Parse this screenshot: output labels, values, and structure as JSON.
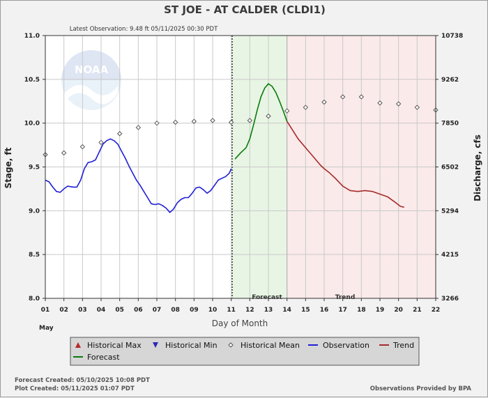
{
  "chart_data": {
    "type": "line",
    "title": "ST JOE - AT CALDER  (CLDI1)",
    "latest_observation": "Latest Observation: 9.48 ft 05/11/2025 00:30 PDT",
    "xlabel": "Day of Month",
    "month_label": "May",
    "ylabel_left": "Stage, ft",
    "ylabel_right": "Discharge, cfs",
    "x_range": [
      1,
      22
    ],
    "ylim": [
      8.0,
      11.0
    ],
    "x_ticks": [
      "01",
      "02",
      "03",
      "04",
      "05",
      "06",
      "07",
      "08",
      "09",
      "10",
      "11",
      "12",
      "13",
      "14",
      "15",
      "16",
      "17",
      "18",
      "19",
      "20",
      "21",
      "22"
    ],
    "y_ticks_left": [
      "8.0",
      "8.5",
      "9.0",
      "9.5",
      "10.0",
      "10.5",
      "11.0"
    ],
    "y_ticks_right": [
      {
        "stage": 8.0,
        "label": "3266"
      },
      {
        "stage": 8.5,
        "label": "4215"
      },
      {
        "stage": 9.0,
        "label": "5294"
      },
      {
        "stage": 9.5,
        "label": "6502"
      },
      {
        "stage": 10.0,
        "label": "7850"
      },
      {
        "stage": 10.5,
        "label": "9262"
      },
      {
        "stage": 11.0,
        "label": "10738"
      }
    ],
    "observation_divider_day": 11.05,
    "forecast_band": {
      "start_day": 11.05,
      "end_day": 14.0,
      "label": "Forecast",
      "color": "#e8f5e4"
    },
    "trend_band": {
      "start_day": 14.0,
      "end_day": 22.0,
      "label": "Trend",
      "color": "#fbeaea"
    },
    "series": [
      {
        "name": "Observation",
        "color": "#1f1fd6",
        "points": [
          [
            1.0,
            9.35
          ],
          [
            1.2,
            9.33
          ],
          [
            1.4,
            9.27
          ],
          [
            1.6,
            9.22
          ],
          [
            1.8,
            9.21
          ],
          [
            2.0,
            9.25
          ],
          [
            2.2,
            9.28
          ],
          [
            2.5,
            9.27
          ],
          [
            2.7,
            9.27
          ],
          [
            2.9,
            9.35
          ],
          [
            3.1,
            9.48
          ],
          [
            3.3,
            9.55
          ],
          [
            3.5,
            9.56
          ],
          [
            3.7,
            9.58
          ],
          [
            3.9,
            9.67
          ],
          [
            4.1,
            9.76
          ],
          [
            4.3,
            9.8
          ],
          [
            4.5,
            9.82
          ],
          [
            4.7,
            9.8
          ],
          [
            4.9,
            9.76
          ],
          [
            5.1,
            9.68
          ],
          [
            5.3,
            9.6
          ],
          [
            5.5,
            9.51
          ],
          [
            5.7,
            9.43
          ],
          [
            5.9,
            9.35
          ],
          [
            6.1,
            9.29
          ],
          [
            6.3,
            9.22
          ],
          [
            6.5,
            9.15
          ],
          [
            6.7,
            9.08
          ],
          [
            6.9,
            9.07
          ],
          [
            7.1,
            9.08
          ],
          [
            7.3,
            9.06
          ],
          [
            7.5,
            9.03
          ],
          [
            7.7,
            8.98
          ],
          [
            7.9,
            9.02
          ],
          [
            8.1,
            9.09
          ],
          [
            8.3,
            9.13
          ],
          [
            8.5,
            9.15
          ],
          [
            8.7,
            9.15
          ],
          [
            8.9,
            9.2
          ],
          [
            9.1,
            9.26
          ],
          [
            9.3,
            9.27
          ],
          [
            9.5,
            9.24
          ],
          [
            9.7,
            9.2
          ],
          [
            9.9,
            9.23
          ],
          [
            10.1,
            9.29
          ],
          [
            10.3,
            9.35
          ],
          [
            10.5,
            9.37
          ],
          [
            10.7,
            9.39
          ],
          [
            10.9,
            9.43
          ],
          [
            11.0,
            9.48
          ]
        ]
      },
      {
        "name": "Forecast",
        "color": "#0a7a0a",
        "points": [
          [
            11.2,
            9.59
          ],
          [
            11.5,
            9.66
          ],
          [
            11.8,
            9.72
          ],
          [
            12.0,
            9.82
          ],
          [
            12.2,
            9.98
          ],
          [
            12.4,
            10.15
          ],
          [
            12.6,
            10.3
          ],
          [
            12.8,
            10.4
          ],
          [
            13.0,
            10.45
          ],
          [
            13.2,
            10.42
          ],
          [
            13.4,
            10.35
          ],
          [
            13.6,
            10.25
          ],
          [
            13.8,
            10.14
          ],
          [
            14.0,
            10.02
          ]
        ]
      },
      {
        "name": "Trend",
        "color": "#a52a2a",
        "points": [
          [
            14.0,
            10.02
          ],
          [
            14.3,
            9.92
          ],
          [
            14.6,
            9.82
          ],
          [
            15.0,
            9.72
          ],
          [
            15.4,
            9.62
          ],
          [
            15.8,
            9.52
          ],
          [
            16.0,
            9.48
          ],
          [
            16.3,
            9.43
          ],
          [
            16.6,
            9.37
          ],
          [
            17.0,
            9.28
          ],
          [
            17.4,
            9.23
          ],
          [
            17.8,
            9.22
          ],
          [
            18.2,
            9.23
          ],
          [
            18.6,
            9.22
          ],
          [
            19.0,
            9.19
          ],
          [
            19.4,
            9.16
          ],
          [
            19.8,
            9.1
          ],
          [
            20.1,
            9.05
          ],
          [
            20.3,
            9.04
          ]
        ]
      }
    ],
    "historical_mean": {
      "name": "Historical Mean",
      "points": [
        [
          1.0,
          9.64
        ],
        [
          2.0,
          9.66
        ],
        [
          3.0,
          9.73
        ],
        [
          4.0,
          9.78
        ],
        [
          5.0,
          9.88
        ],
        [
          6.0,
          9.95
        ],
        [
          7.0,
          10.0
        ],
        [
          8.0,
          10.01
        ],
        [
          9.0,
          10.02
        ],
        [
          10.0,
          10.03
        ],
        [
          11.0,
          10.01
        ],
        [
          12.0,
          10.03
        ],
        [
          13.0,
          10.08
        ],
        [
          14.0,
          10.14
        ],
        [
          15.0,
          10.18
        ],
        [
          16.0,
          10.24
        ],
        [
          17.0,
          10.3
        ],
        [
          18.0,
          10.3
        ],
        [
          19.0,
          10.23
        ],
        [
          20.0,
          10.22
        ],
        [
          21.0,
          10.18
        ],
        [
          22.0,
          10.15
        ]
      ]
    },
    "legend": [
      {
        "key": "hist-max",
        "label": "Historical Max",
        "symbol": "triangle-up",
        "color": "#b52a2a"
      },
      {
        "key": "hist-min",
        "label": "Historical Min",
        "symbol": "triangle-down",
        "color": "#2a2ab5"
      },
      {
        "key": "hist-mean",
        "label": "Historical Mean",
        "symbol": "diamond",
        "color": "#555555"
      },
      {
        "key": "observation",
        "label": "Observation",
        "symbol": "line",
        "color": "#1f1fd6"
      },
      {
        "key": "trend",
        "label": "Trend",
        "symbol": "line",
        "color": "#a52a2a"
      },
      {
        "key": "forecast",
        "label": "Forecast",
        "symbol": "line",
        "color": "#0a7a0a"
      }
    ],
    "watermark_text": "NOAA"
  },
  "footer": {
    "forecast_created": "Forecast Created: 05/10/2025 10:08 PDT",
    "plot_created": "Plot Created: 05/11/2025 01:07 PDT",
    "provided_by": "Observations Provided by BPA"
  }
}
